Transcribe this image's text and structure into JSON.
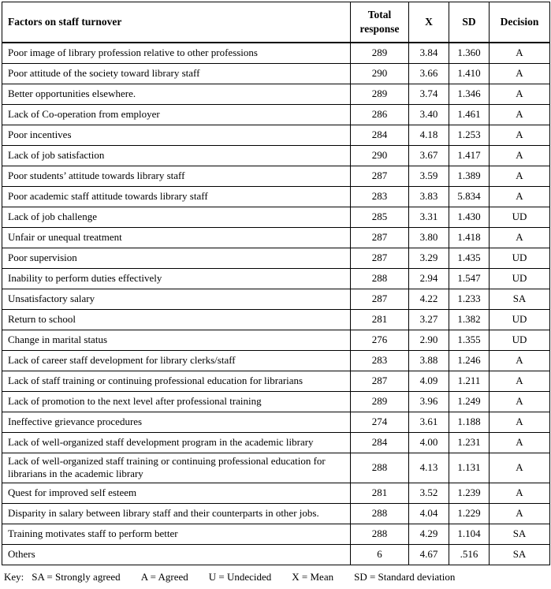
{
  "table": {
    "columns": [
      {
        "key": "factor",
        "label": "Factors on staff turnover"
      },
      {
        "key": "total_response",
        "label": "Total response"
      },
      {
        "key": "mean",
        "label": "X"
      },
      {
        "key": "sd",
        "label": "SD"
      },
      {
        "key": "decision",
        "label": "Decision"
      }
    ],
    "rows": [
      {
        "factor": "Poor image of library profession relative to other professions",
        "total_response": "289",
        "mean": "3.84",
        "sd": "1.360",
        "decision": "A"
      },
      {
        "factor": "Poor attitude of the society toward library staff",
        "total_response": "290",
        "mean": "3.66",
        "sd": "1.410",
        "decision": "A"
      },
      {
        "factor": "Better opportunities elsewhere.",
        "total_response": "289",
        "mean": "3.74",
        "sd": "1.346",
        "decision": "A"
      },
      {
        "factor": "Lack of Co-operation from employer",
        "total_response": "286",
        "mean": "3.40",
        "sd": "1.461",
        "decision": "A"
      },
      {
        "factor": "Poor incentives",
        "total_response": "284",
        "mean": "4.18",
        "sd": "1.253",
        "decision": "A"
      },
      {
        "factor": "Lack of job satisfaction",
        "total_response": "290",
        "mean": "3.67",
        "sd": "1.417",
        "decision": "A"
      },
      {
        "factor": "Poor students’ attitude towards library staff",
        "total_response": "287",
        "mean": "3.59",
        "sd": "1.389",
        "decision": "A"
      },
      {
        "factor": "Poor academic staff attitude towards library staff",
        "total_response": "283",
        "mean": "3.83",
        "sd": "5.834",
        "decision": "A"
      },
      {
        "factor": "Lack of job challenge",
        "total_response": "285",
        "mean": "3.31",
        "sd": "1.430",
        "decision": "UD"
      },
      {
        "factor": "Unfair or unequal treatment",
        "total_response": "287",
        "mean": "3.80",
        "sd": "1.418",
        "decision": "A"
      },
      {
        "factor": "Poor supervision",
        "total_response": "287",
        "mean": "3.29",
        "sd": "1.435",
        "decision": "UD"
      },
      {
        "factor": "Inability to perform duties effectively",
        "total_response": "288",
        "mean": "2.94",
        "sd": "1.547",
        "decision": "UD"
      },
      {
        "factor": "Unsatisfactory salary",
        "total_response": "287",
        "mean": "4.22",
        "sd": "1.233",
        "decision": "SA"
      },
      {
        "factor": "Return to school",
        "total_response": "281",
        "mean": "3.27",
        "sd": "1.382",
        "decision": "UD"
      },
      {
        "factor": "Change in marital status",
        "total_response": "276",
        "mean": "2.90",
        "sd": "1.355",
        "decision": "UD"
      },
      {
        "factor": "Lack of career staff development for library clerks/staff",
        "total_response": "283",
        "mean": "3.88",
        "sd": "1.246",
        "decision": "A"
      },
      {
        "factor": "Lack of staff training or continuing professional education for librarians",
        "total_response": "287",
        "mean": "4.09",
        "sd": "1.211",
        "decision": "A"
      },
      {
        "factor": "Lack of promotion to the next level after professional training",
        "total_response": "289",
        "mean": "3.96",
        "sd": "1.249",
        "decision": "A"
      },
      {
        "factor": "Ineffective grievance procedures",
        "total_response": "274",
        "mean": "3.61",
        "sd": "1.188",
        "decision": "A"
      },
      {
        "factor": "Lack of well-organized staff development program in the academic library",
        "total_response": "284",
        "mean": "4.00",
        "sd": "1.231",
        "decision": "A"
      },
      {
        "factor": "Lack of well-organized staff training or continuing professional education for librarians in the academic library",
        "total_response": "288",
        "mean": "4.13",
        "sd": "1.131",
        "decision": "A"
      },
      {
        "factor": "Quest for improved self esteem",
        "total_response": "281",
        "mean": "3.52",
        "sd": "1.239",
        "decision": "A"
      },
      {
        "factor": "Disparity in salary between library staff and their counterparts in other jobs.",
        "total_response": "288",
        "mean": "4.04",
        "sd": "1.229",
        "decision": "A"
      },
      {
        "factor": "Training motivates staff to perform better",
        "total_response": "288",
        "mean": "4.29",
        "sd": "1.104",
        "decision": "SA"
      },
      {
        "factor": "Others",
        "total_response": "6",
        "mean": "4.67",
        "sd": ".516",
        "decision": "SA"
      }
    ]
  },
  "key": {
    "label": "Key:",
    "items": [
      "SA = Strongly agreed",
      "A = Agreed",
      "U = Undecided",
      "X = Mean",
      "SD = Standard deviation"
    ]
  },
  "colors": {
    "text": "#000000",
    "border": "#000000",
    "background": "#ffffff"
  }
}
